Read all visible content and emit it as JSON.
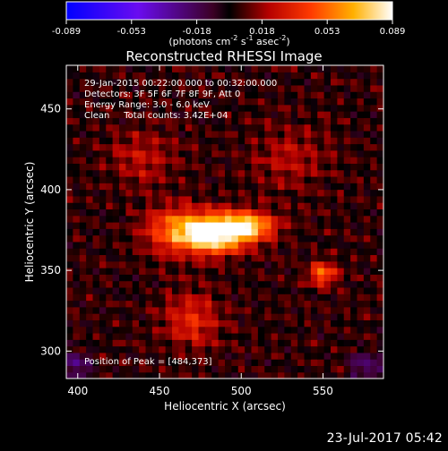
{
  "chart_data": {
    "type": "heatmap",
    "title": "Reconstructed RHESSI Image",
    "xlabel": "Heliocentric X (arcsec)",
    "ylabel": "Heliocentric Y (arcsec)",
    "xlim": [
      393,
      587
    ],
    "ylim": [
      283,
      477
    ],
    "x_ticks": [
      400,
      450,
      500,
      550
    ],
    "y_ticks": [
      300,
      350,
      400,
      450
    ],
    "colorbar": {
      "min": -0.089,
      "max": 0.089,
      "ticks": [
        "-0.089",
        "-0.053",
        "-0.018",
        "0.018",
        "0.053",
        "0.089"
      ],
      "unit_base": "(photons cm",
      "unit_exp1": "-2",
      "unit_mid": " s",
      "unit_exp2": "-1",
      "unit_mid2": " asec",
      "unit_exp3": "-2",
      "unit_end": ")"
    },
    "annotations": [
      "29-Jan-2015 00:22:00.000 to 00:32:00.000",
      "Detectors: 3F 5F 6F 7F 8F 9F, Att 0",
      "Energy Range: 3.0 - 6.0 keV",
      "Clean     Total counts: 3.42E+04"
    ],
    "peak_label": "Position of Peak = [484,373]",
    "peak": [
      484,
      373
    ],
    "sources": [
      {
        "x": 484,
        "y": 373,
        "sx": 14,
        "sy": 8,
        "amp": 0.089
      },
      {
        "x": 505,
        "y": 378,
        "sx": 12,
        "sy": 6,
        "amp": 0.06
      },
      {
        "x": 460,
        "y": 375,
        "sx": 14,
        "sy": 10,
        "amp": 0.045
      },
      {
        "x": 550,
        "y": 348,
        "sx": 6,
        "sy": 5,
        "amp": 0.05
      },
      {
        "x": 470,
        "y": 320,
        "sx": 12,
        "sy": 12,
        "amp": 0.03
      },
      {
        "x": 440,
        "y": 420,
        "sx": 14,
        "sy": 12,
        "amp": 0.02
      },
      {
        "x": 530,
        "y": 420,
        "sx": 16,
        "sy": 14,
        "amp": 0.018
      }
    ]
  },
  "footer": {
    "timestamp": "23-Jul-2017 05:42"
  }
}
